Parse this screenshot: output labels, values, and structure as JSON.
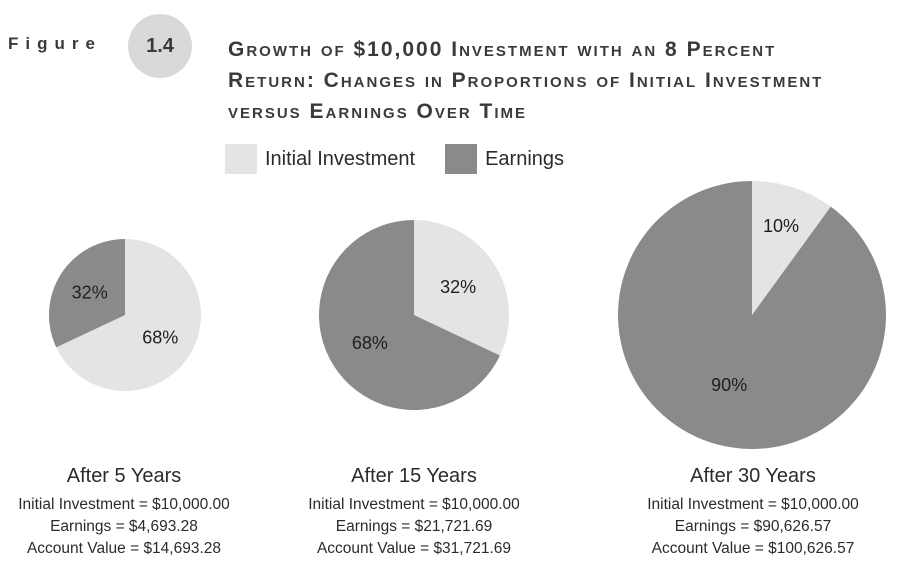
{
  "figure": {
    "label": "Figure",
    "number": "1.4",
    "title": "Growth of $10,000 Investment with an 8 Percent Return: Changes in Proportions of Initial Investment versus Earnings Over Time"
  },
  "colors": {
    "initial": "#e4e4e4",
    "earnings": "#8a8a8a"
  },
  "chart_data": {
    "type": "pie",
    "legend": [
      "Initial Investment",
      "Earnings"
    ],
    "legend_placement": "top",
    "pies": [
      {
        "title": "After 5 Years",
        "slices": [
          {
            "name": "Initial Investment",
            "value": 68,
            "label": "68%"
          },
          {
            "name": "Earnings",
            "value": 32,
            "label": "32%"
          }
        ],
        "details": [
          "Initial Investment = $10,000.00",
          "Earnings = $4,693.28",
          "Account Value = $14,693.28"
        ]
      },
      {
        "title": "After 15 Years",
        "slices": [
          {
            "name": "Initial Investment",
            "value": 32,
            "label": "32%"
          },
          {
            "name": "Earnings",
            "value": 68,
            "label": "68%"
          }
        ],
        "details": [
          "Initial Investment = $10,000.00",
          "Earnings = $21,721.69",
          "Account Value = $31,721.69"
        ]
      },
      {
        "title": "After 30 Years",
        "slices": [
          {
            "name": "Initial Investment",
            "value": 10,
            "label": "10%"
          },
          {
            "name": "Earnings",
            "value": 90,
            "label": "90%"
          }
        ],
        "details": [
          "Initial Investment = $10,000.00",
          "Earnings = $90,626.57",
          "Account Value = $100,626.57"
        ]
      }
    ]
  }
}
